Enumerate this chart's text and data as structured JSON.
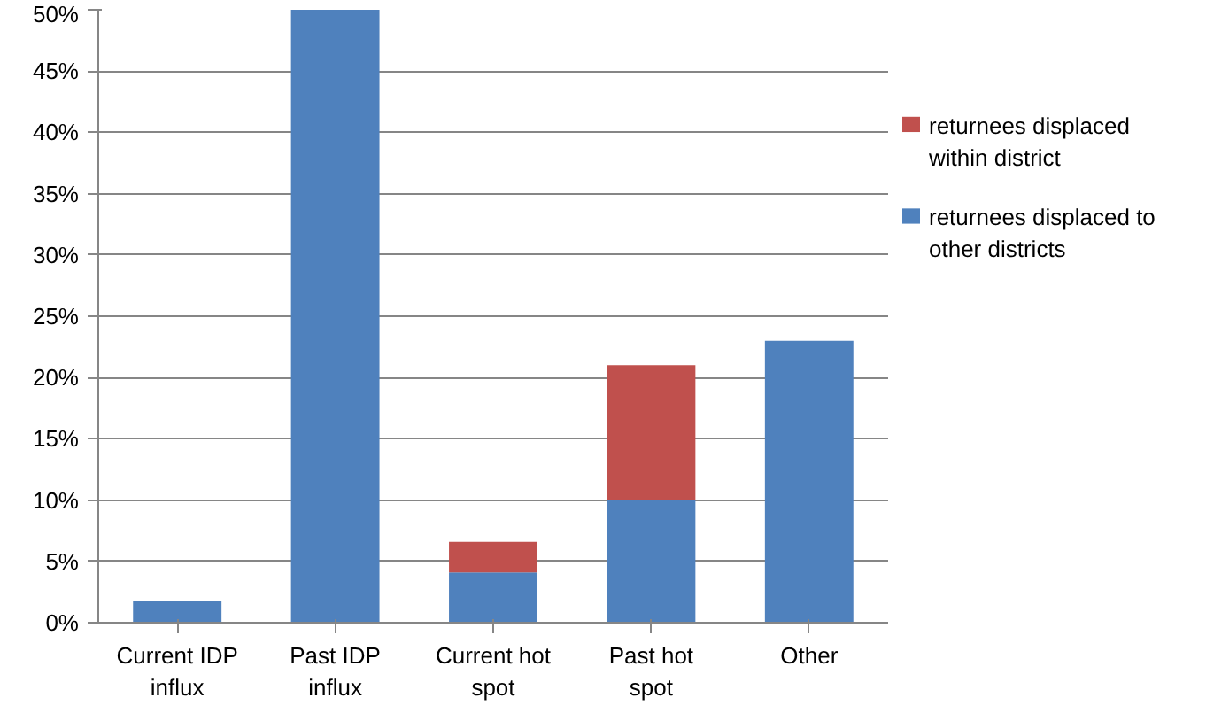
{
  "chart_data": {
    "type": "bar",
    "stacked": true,
    "categories": [
      "Current IDP influx",
      "Past IDP influx",
      "Current hot spot",
      "Past hot spot",
      "Other"
    ],
    "series": [
      {
        "name": "returnees displaced to other districts",
        "color": "#4f81bd",
        "values": [
          1.8,
          50,
          4.1,
          10,
          23
        ]
      },
      {
        "name": "returnees displaced within district",
        "color": "#c0504d",
        "values": [
          null,
          null,
          2.5,
          11,
          null
        ]
      }
    ],
    "ylim": [
      0,
      50
    ],
    "yticks": [
      {
        "value": 0,
        "label": "0%"
      },
      {
        "value": 5,
        "label": "5%"
      },
      {
        "value": 10,
        "label": "10%"
      },
      {
        "value": 15,
        "label": "15%"
      },
      {
        "value": 20,
        "label": "20%"
      },
      {
        "value": 25,
        "label": "25%"
      },
      {
        "value": 30,
        "label": "30%"
      },
      {
        "value": 35,
        "label": "35%"
      },
      {
        "value": 40,
        "label": "40%"
      },
      {
        "value": 45,
        "label": "45%"
      },
      {
        "value": 50,
        "label": "50%"
      }
    ],
    "grid": "y",
    "legend": "right"
  }
}
